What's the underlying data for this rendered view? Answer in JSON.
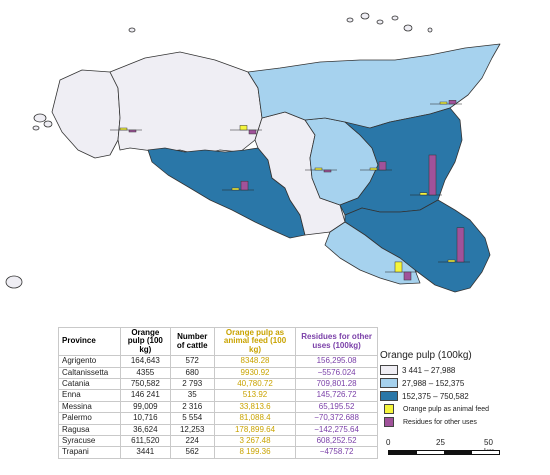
{
  "map": {
    "provinces": [
      {
        "name": "Trapani",
        "class": "c1"
      },
      {
        "name": "Palermo",
        "class": "c1"
      },
      {
        "name": "Agrigento",
        "class": "c3"
      },
      {
        "name": "Caltanissetta",
        "class": "c1"
      },
      {
        "name": "Enna",
        "class": "c2"
      },
      {
        "name": "Messina",
        "class": "c2"
      },
      {
        "name": "Catania",
        "class": "c3"
      },
      {
        "name": "Siracusa",
        "class": "c3"
      },
      {
        "name": "Ragusa",
        "class": "c2"
      }
    ],
    "colors": {
      "c1": "#efeef4",
      "c2": "#a6d2ee",
      "c3": "#2a77a8",
      "feed": "#f5f53c",
      "residue": "#a0529a",
      "border": "#333333",
      "island": "#efeef4"
    }
  },
  "table": {
    "headers": {
      "province": "Province",
      "pulp": "Orange pulp (100 kg)",
      "cattle": "Number of cattle",
      "feed": "Orange pulp as animal feed (100 kg)",
      "residues": "Residues for other uses (100kg)"
    },
    "rows": [
      {
        "province": "Agrigento",
        "pulp": "164,643",
        "cattle": "572",
        "feed": "8348.28",
        "residues": "156,295.08"
      },
      {
        "province": "Caltanissetta",
        "pulp": "4355",
        "cattle": "680",
        "feed": "9930.92",
        "residues": "−5576.024"
      },
      {
        "province": "Catania",
        "pulp": "750,582",
        "cattle": "2 793",
        "feed": "40,780.72",
        "residues": "709,801.28"
      },
      {
        "province": "Enna",
        "pulp": "146 241",
        "cattle": "35",
        "feed": "513.92",
        "residues": "145,726.72"
      },
      {
        "province": "Messina",
        "pulp": "99,009",
        "cattle": "2 316",
        "feed": "33,813.6",
        "residues": "65,195.52"
      },
      {
        "province": "Palermo",
        "pulp": "10,716",
        "cattle": "5 554",
        "feed": "81,088.4",
        "residues": "−70,372.688"
      },
      {
        "province": "Ragusa",
        "pulp": "36,624",
        "cattle": "12,253",
        "feed": "178,899.64",
        "residues": "−142,275.64"
      },
      {
        "province": "Syracuse",
        "pulp": "611,520",
        "cattle": "224",
        "feed": "3 267.48",
        "residues": "608,252.52"
      },
      {
        "province": "Trapani",
        "pulp": "3441",
        "cattle": "562",
        "feed": "8 199.36",
        "residues": "−4758.72"
      }
    ]
  },
  "legend": {
    "title": "Orange pulp (100kg)",
    "classes": [
      {
        "label": "3 441 – 27,988",
        "color": "#efeef4"
      },
      {
        "label": "27,988 – 152,375",
        "color": "#a6d2ee"
      },
      {
        "label": "152,375 – 750,582",
        "color": "#2a77a8"
      }
    ],
    "bars": [
      {
        "label": "Orange pulp as animal feed",
        "color": "#f5f53c"
      },
      {
        "label": "Residues for other uses",
        "color": "#a0529a"
      }
    ]
  },
  "scale_bar": {
    "ticks": [
      "0",
      "25",
      "50 km"
    ]
  }
}
